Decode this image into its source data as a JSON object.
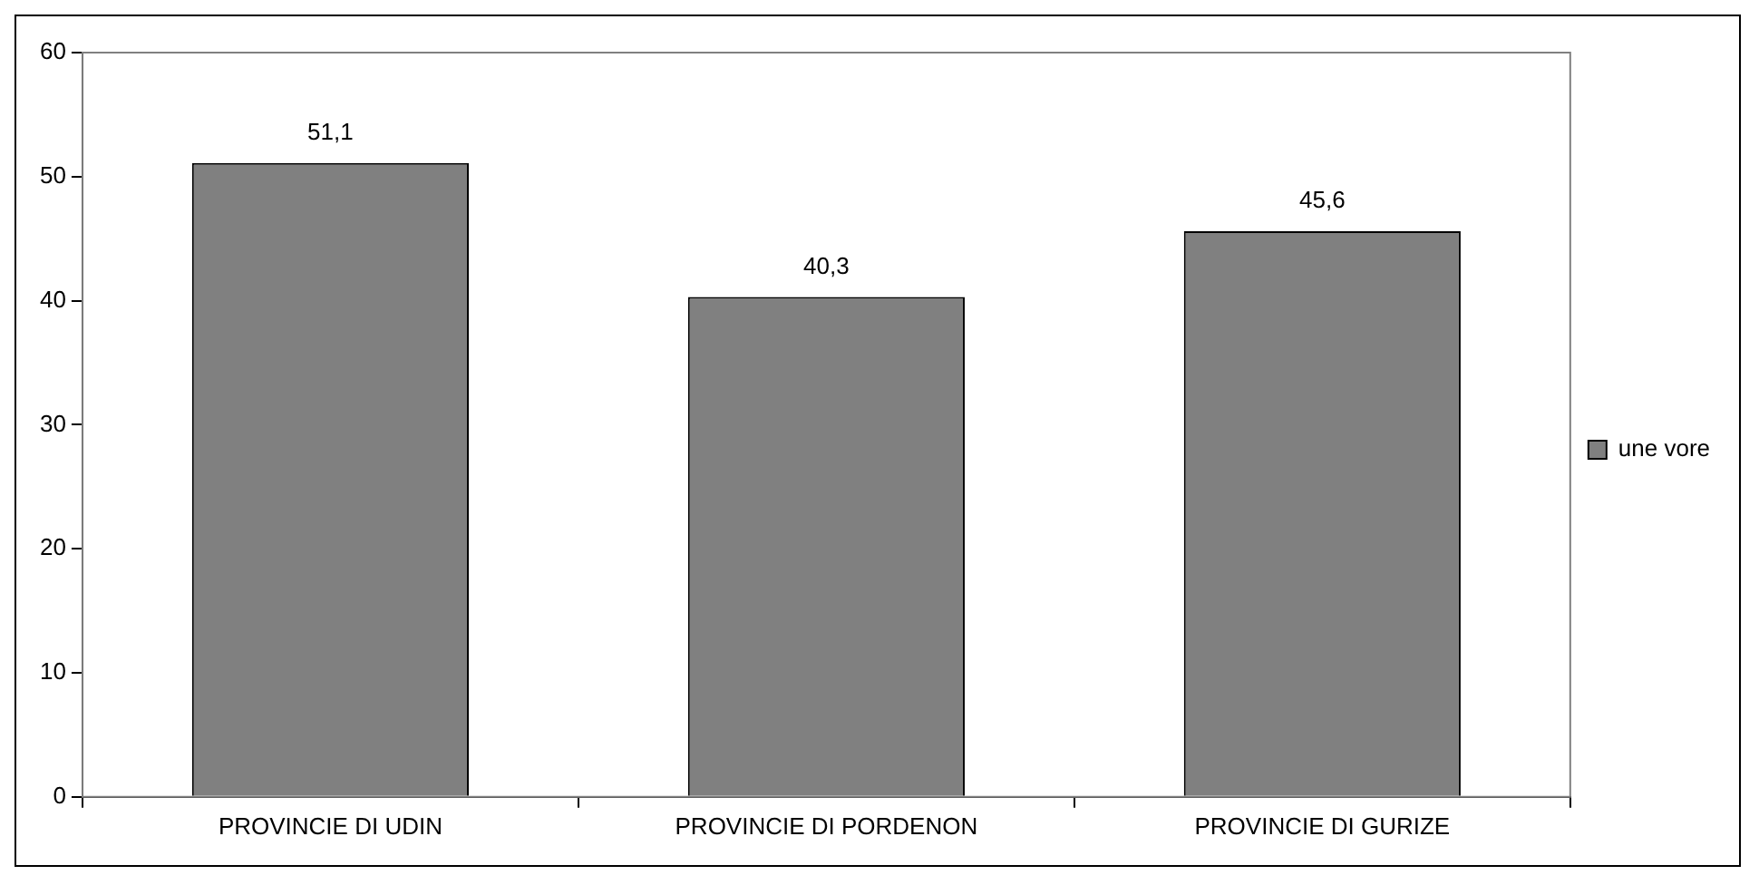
{
  "chart_data": {
    "type": "bar",
    "categories": [
      "PROVINCIE DI UDIN",
      "PROVINCIE DI PORDENON",
      "PROVINCIE DI GURIZE"
    ],
    "series": [
      {
        "name": "une vore",
        "color": "#808080",
        "values": [
          51.1,
          40.3,
          45.6
        ],
        "value_labels": [
          "51,1",
          "40,3",
          "45,6"
        ]
      }
    ],
    "ylim": [
      0,
      60
    ],
    "yticks": [
      0,
      10,
      20,
      30,
      40,
      50,
      60
    ],
    "grid": false,
    "legend": "right"
  }
}
